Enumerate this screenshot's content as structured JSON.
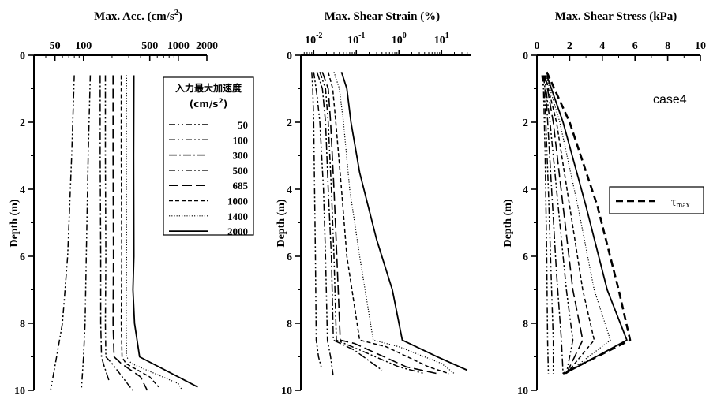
{
  "chart_data": [
    {
      "type": "line",
      "title": "Max. Acc. (cm/s²)",
      "xlabel": "Max. Acc. (cm/s²)",
      "ylabel": "Depth (m)",
      "xscale": "log",
      "xlim": [
        30,
        2000
      ],
      "ylim": [
        0,
        10
      ],
      "x_ticks": [
        50,
        100,
        500,
        1000,
        2000
      ],
      "x_tick_labels": [
        "50",
        "100",
        "500",
        "1000",
        "2000"
      ],
      "y_ticks": [
        0,
        2,
        4,
        6,
        8,
        10
      ],
      "y_tick_labels": [
        "0",
        "2",
        "4",
        "6",
        "8",
        "10"
      ],
      "legend": {
        "title_line1": "入力最大加速度",
        "title_line2": "(cm/s²)",
        "placement": "top-right",
        "entries": [
          "50",
          "100",
          "300",
          "500",
          "685",
          "1000",
          "1400",
          "2000"
        ]
      },
      "series": [
        {
          "name": "50",
          "dash": "dashdotdot",
          "width": 1.5,
          "points": [
            [
              80,
              0.6
            ],
            [
              75,
              3
            ],
            [
              68,
              6
            ],
            [
              60,
              8
            ],
            [
              52,
              9
            ],
            [
              45,
              10
            ]
          ]
        },
        {
          "name": "100",
          "dash": "dashdotdot",
          "width": 1.5,
          "points": [
            [
              118,
              0.6
            ],
            [
              112,
              3
            ],
            [
              107,
              6
            ],
            [
              104,
              8
            ],
            [
              100,
              9
            ],
            [
              95,
              10
            ]
          ]
        },
        {
          "name": "300",
          "dash": "dashdot",
          "width": 1.5,
          "points": [
            [
              150,
              0.6
            ],
            [
              150,
              3
            ],
            [
              152,
              6
            ],
            [
              152,
              8
            ],
            [
              155,
              9
            ],
            [
              162,
              9.2
            ],
            [
              185,
              9.7
            ]
          ]
        },
        {
          "name": "500",
          "dash": "dashdotdot",
          "width": 1.5,
          "points": [
            [
              170,
              0.6
            ],
            [
              170,
              3
            ],
            [
              172,
              6
            ],
            [
              170,
              8
            ],
            [
              172,
              9
            ],
            [
              200,
              9.2
            ],
            [
              330,
              10
            ]
          ]
        },
        {
          "name": "685",
          "dash": "longdash",
          "width": 1.6,
          "points": [
            [
              205,
              0.6
            ],
            [
              205,
              3
            ],
            [
              207,
              6
            ],
            [
              205,
              8
            ],
            [
              210,
              9
            ],
            [
              250,
              9.2
            ],
            [
              400,
              9.6
            ],
            [
              470,
              10
            ]
          ]
        },
        {
          "name": "1000",
          "dash": "dash",
          "width": 1.5,
          "points": [
            [
              250,
              0.6
            ],
            [
              250,
              3
            ],
            [
              253,
              6
            ],
            [
              250,
              8
            ],
            [
              255,
              9
            ],
            [
              280,
              9.2
            ],
            [
              500,
              9.6
            ],
            [
              620,
              9.9
            ]
          ]
        },
        {
          "name": "1400",
          "dash": "dot",
          "width": 1.2,
          "points": [
            [
              285,
              0.6
            ],
            [
              283,
              3
            ],
            [
              285,
              6
            ],
            [
              282,
              8
            ],
            [
              285,
              9
            ],
            [
              320,
              9.2
            ],
            [
              1000,
              9.8
            ],
            [
              1100,
              10
            ]
          ]
        },
        {
          "name": "2000",
          "dash": "solid",
          "width": 1.8,
          "points": [
            [
              340,
              0.6
            ],
            [
              338,
              3
            ],
            [
              340,
              6
            ],
            [
              332,
              7
            ],
            [
              345,
              8
            ],
            [
              390,
              9
            ],
            [
              1600,
              9.9
            ]
          ]
        }
      ]
    },
    {
      "type": "line",
      "title": "Max. Shear Strain (%)",
      "xlabel": "Max. Shear Strain (%)",
      "ylabel": "Depth (m)",
      "xscale": "log",
      "xlim": [
        0.005,
        50
      ],
      "ylim": [
        0,
        10
      ],
      "x_ticks": [
        0.01,
        0.1,
        1,
        10
      ],
      "x_tick_labels": [
        {
          "base": "10",
          "exp": "-2"
        },
        {
          "base": "10",
          "exp": "-1"
        },
        {
          "base": "10",
          "exp": "0"
        },
        {
          "base": "10",
          "exp": "1"
        }
      ],
      "y_ticks": [
        0,
        2,
        4,
        6,
        8,
        10
      ],
      "y_tick_labels": [
        "0",
        "2",
        "4",
        "6",
        "8",
        "10"
      ],
      "series": [
        {
          "name": "50",
          "dash": "dashdotdot",
          "width": 1.5,
          "points": [
            [
              0.009,
              0.5
            ],
            [
              0.0095,
              1
            ],
            [
              0.01,
              2
            ],
            [
              0.0105,
              4
            ],
            [
              0.011,
              6
            ],
            [
              0.0115,
              8.5
            ],
            [
              0.013,
              9
            ],
            [
              0.015,
              9.3
            ]
          ]
        },
        {
          "name": "100",
          "dash": "dashdotdot",
          "width": 1.5,
          "points": [
            [
              0.01,
              0.5
            ],
            [
              0.012,
              1.2
            ],
            [
              0.014,
              2
            ],
            [
              0.017,
              4
            ],
            [
              0.019,
              6
            ],
            [
              0.021,
              8.5
            ],
            [
              0.025,
              9
            ],
            [
              0.029,
              9.6
            ]
          ]
        },
        {
          "name": "300",
          "dash": "dashdot",
          "width": 1.5,
          "points": [
            [
              0.012,
              0.5
            ],
            [
              0.016,
              1
            ],
            [
              0.019,
              2
            ],
            [
              0.022,
              4
            ],
            [
              0.026,
              6
            ],
            [
              0.029,
              8.5
            ],
            [
              0.09,
              8.8
            ],
            [
              0.4,
              9.4
            ]
          ]
        },
        {
          "name": "500",
          "dash": "dashdotdot",
          "width": 1.5,
          "points": [
            [
              0.014,
              0.5
            ],
            [
              0.019,
              1
            ],
            [
              0.022,
              2
            ],
            [
              0.026,
              4
            ],
            [
              0.03,
              6
            ],
            [
              0.034,
              8.5
            ],
            [
              0.08,
              8.7
            ],
            [
              1.0,
              9.3
            ],
            [
              4.0,
              9.5
            ]
          ]
        },
        {
          "name": "685",
          "dash": "longdash",
          "width": 1.6,
          "points": [
            [
              0.016,
              0.5
            ],
            [
              0.022,
              1
            ],
            [
              0.025,
              2
            ],
            [
              0.03,
              4
            ],
            [
              0.035,
              6
            ],
            [
              0.042,
              8.5
            ],
            [
              0.09,
              8.6
            ],
            [
              1.5,
              9.3
            ],
            [
              8,
              9.5
            ]
          ]
        },
        {
          "name": "1000",
          "dash": "dash",
          "width": 1.5,
          "points": [
            [
              0.022,
              0.5
            ],
            [
              0.028,
              1
            ],
            [
              0.033,
              2
            ],
            [
              0.045,
              4
            ],
            [
              0.06,
              6
            ],
            [
              0.12,
              8.5
            ],
            [
              0.5,
              8.7
            ],
            [
              5,
              9.3
            ],
            [
              15,
              9.5
            ]
          ]
        },
        {
          "name": "1400",
          "dash": "dot",
          "width": 1.2,
          "points": [
            [
              0.03,
              0.5
            ],
            [
              0.04,
              1
            ],
            [
              0.05,
              2
            ],
            [
              0.07,
              4
            ],
            [
              0.12,
              6
            ],
            [
              0.25,
              8.5
            ],
            [
              1,
              8.7
            ],
            [
              10,
              9.2
            ],
            [
              20,
              9.5
            ]
          ]
        },
        {
          "name": "2000",
          "dash": "solid",
          "width": 1.8,
          "points": [
            [
              0.045,
              0.5
            ],
            [
              0.06,
              1
            ],
            [
              0.075,
              2
            ],
            [
              0.12,
              3.5
            ],
            [
              0.3,
              5.5
            ],
            [
              0.7,
              7
            ],
            [
              1.2,
              8.5
            ],
            [
              8,
              9
            ],
            [
              40,
              9.4
            ]
          ]
        }
      ]
    },
    {
      "type": "line",
      "title": "Max. Shear Stress (kPa)",
      "xlabel": "Max. Shear Stress (kPa)",
      "ylabel": "Depth (m)",
      "xscale": "linear",
      "xlim": [
        0,
        10
      ],
      "ylim": [
        0,
        10
      ],
      "x_ticks": [
        0,
        2,
        4,
        6,
        8,
        10
      ],
      "x_tick_labels": [
        "0",
        "2",
        "4",
        "6",
        "8",
        "10"
      ],
      "y_ticks": [
        0,
        2,
        4,
        6,
        8,
        10
      ],
      "y_tick_labels": [
        "0",
        "2",
        "4",
        "6",
        "8",
        "10"
      ],
      "annotation": "case4",
      "legend": {
        "placement": "center-right",
        "entries": [
          {
            "symbol": "τ",
            "subscript": "max"
          }
        ]
      },
      "series": [
        {
          "name": "50",
          "dash": "dashdotdot",
          "width": 1.5,
          "points": [
            [
              0.3,
              0.6
            ],
            [
              0.4,
              1
            ],
            [
              0.5,
              3
            ],
            [
              0.6,
              6
            ],
            [
              0.65,
              8.5
            ],
            [
              0.7,
              9.5
            ]
          ]
        },
        {
          "name": "100",
          "dash": "dashdotdot",
          "width": 1.5,
          "points": [
            [
              0.35,
              0.6
            ],
            [
              0.5,
              1.5
            ],
            [
              0.7,
              4
            ],
            [
              0.9,
              7
            ],
            [
              1.0,
              8.5
            ],
            [
              1.0,
              9.5
            ]
          ]
        },
        {
          "name": "300",
          "dash": "dashdot",
          "width": 1.5,
          "points": [
            [
              0.4,
              0.6
            ],
            [
              0.6,
              1.5
            ],
            [
              0.9,
              4
            ],
            [
              1.2,
              6.5
            ],
            [
              1.5,
              8.5
            ],
            [
              1.6,
              9.5
            ]
          ]
        },
        {
          "name": "500",
          "dash": "dashdotdot",
          "width": 1.5,
          "points": [
            [
              0.45,
              0.6
            ],
            [
              0.8,
              2
            ],
            [
              1.3,
              4.5
            ],
            [
              1.8,
              7
            ],
            [
              2.2,
              8.5
            ],
            [
              1.8,
              9.5
            ]
          ]
        },
        {
          "name": "685",
          "dash": "longdash",
          "width": 1.6,
          "points": [
            [
              0.5,
              0.6
            ],
            [
              1.0,
              2
            ],
            [
              1.6,
              4.5
            ],
            [
              2.2,
              7
            ],
            [
              2.8,
              8.5
            ],
            [
              1.8,
              9.5
            ]
          ]
        },
        {
          "name": "1000",
          "dash": "dash",
          "width": 1.5,
          "points": [
            [
              0.5,
              0.6
            ],
            [
              1.2,
              2
            ],
            [
              2.0,
              4.5
            ],
            [
              2.8,
              7
            ],
            [
              3.5,
              8.5
            ],
            [
              1.8,
              9.5
            ]
          ]
        },
        {
          "name": "1400",
          "dash": "dot",
          "width": 1.2,
          "points": [
            [
              0.55,
              0.6
            ],
            [
              1.4,
              2
            ],
            [
              2.5,
              4.5
            ],
            [
              3.5,
              7
            ],
            [
              4.5,
              8.5
            ],
            [
              1.8,
              9.5
            ]
          ]
        },
        {
          "name": "2000",
          "dash": "solid",
          "width": 1.8,
          "points": [
            [
              0.6,
              0.6
            ],
            [
              1.6,
              2
            ],
            [
              3.0,
              4.5
            ],
            [
              4.3,
              7
            ],
            [
              5.5,
              8.5
            ],
            [
              1.7,
              9.5
            ]
          ]
        },
        {
          "name": "τmax",
          "dash": "heavydash",
          "width": 2.6,
          "points": [
            [
              0.6,
              0.5
            ],
            [
              2.0,
              2
            ],
            [
              3.7,
              4.5
            ],
            [
              5.0,
              7
            ],
            [
              5.7,
              8.5
            ],
            [
              1.6,
              9.5
            ]
          ]
        }
      ]
    }
  ]
}
